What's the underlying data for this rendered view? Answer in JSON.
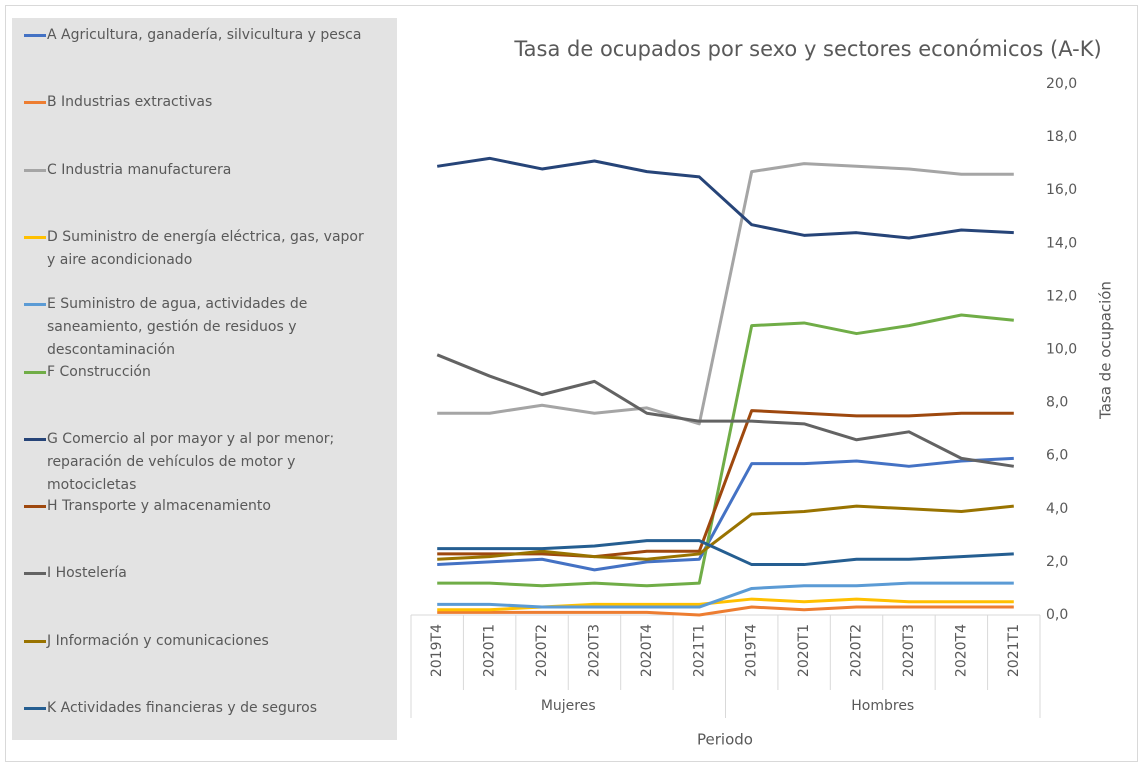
{
  "chart_data": {
    "type": "line",
    "title": "Tasa de ocupados por sexo y sectores económicos (A-K)",
    "x_label": "Periodo",
    "y_label": "Tasa de ocupación",
    "categories": [
      "2019T4",
      "2020T1",
      "2020T2",
      "2020T3",
      "2020T4",
      "2021T1",
      "2019T4",
      "2020T1",
      "2020T2",
      "2020T3",
      "2020T4",
      "2021T1"
    ],
    "groups": [
      "Mujeres",
      "Hombres"
    ],
    "ylim": [
      0,
      20
    ],
    "yticks": [
      {
        "value": 0,
        "label": "0,0"
      },
      {
        "value": 2,
        "label": "2,0"
      },
      {
        "value": 4,
        "label": "4,0"
      },
      {
        "value": 6,
        "label": "6,0"
      },
      {
        "value": 8,
        "label": "8,0"
      },
      {
        "value": 10,
        "label": "10,0"
      },
      {
        "value": 12,
        "label": "12,0"
      },
      {
        "value": 14,
        "label": "14,0"
      },
      {
        "value": 16,
        "label": "16,0"
      },
      {
        "value": 18,
        "label": "18,0"
      },
      {
        "value": 20,
        "label": "20,0"
      }
    ],
    "grid": false,
    "legend": "left",
    "series": [
      {
        "name": "A Agricultura, ganadería, silvicultura y pesca",
        "color": "#4472c4",
        "values": [
          1.9,
          2.0,
          2.1,
          1.7,
          2.0,
          2.1,
          5.7,
          5.7,
          5.8,
          5.6,
          5.8,
          5.9
        ]
      },
      {
        "name": "B Industrias extractivas",
        "color": "#ed7d31",
        "values": [
          0.1,
          0.1,
          0.1,
          0.1,
          0.1,
          0.0,
          0.3,
          0.2,
          0.3,
          0.3,
          0.3,
          0.3
        ]
      },
      {
        "name": "C Industria manufacturera",
        "color": "#a5a5a5",
        "values": [
          7.6,
          7.6,
          7.9,
          7.6,
          7.8,
          7.2,
          16.7,
          17.0,
          16.9,
          16.8,
          16.6,
          16.6
        ]
      },
      {
        "name": "D Suministro de energía eléctrica, gas, vapor y aire acondicionado",
        "color": "#ffc000",
        "values": [
          0.2,
          0.2,
          0.3,
          0.4,
          0.4,
          0.4,
          0.6,
          0.5,
          0.6,
          0.5,
          0.5,
          0.5
        ]
      },
      {
        "name": "E Suministro de agua, actividades de saneamiento, gestión de residuos y descontaminación",
        "color": "#5b9bd5",
        "values": [
          0.4,
          0.4,
          0.3,
          0.3,
          0.3,
          0.3,
          1.0,
          1.1,
          1.1,
          1.2,
          1.2,
          1.2
        ]
      },
      {
        "name": "F Construcción",
        "color": "#70ad47",
        "values": [
          1.2,
          1.2,
          1.1,
          1.2,
          1.1,
          1.2,
          10.9,
          11.0,
          10.6,
          10.9,
          11.3,
          11.1
        ]
      },
      {
        "name": "G Comercio al por mayor y al por menor; reparación de vehículos de motor y motocicletas",
        "color": "#264478",
        "values": [
          16.9,
          17.2,
          16.8,
          17.1,
          16.7,
          16.5,
          14.7,
          14.3,
          14.4,
          14.2,
          14.5,
          14.4
        ]
      },
      {
        "name": "H Transporte y almacenamiento",
        "color": "#9e480e",
        "values": [
          2.3,
          2.3,
          2.3,
          2.2,
          2.4,
          2.4,
          7.7,
          7.6,
          7.5,
          7.5,
          7.6,
          7.6
        ]
      },
      {
        "name": "I Hostelería",
        "color": "#636363",
        "values": [
          9.8,
          9.0,
          8.3,
          8.8,
          7.6,
          7.3,
          7.3,
          7.2,
          6.6,
          6.9,
          5.9,
          5.6
        ]
      },
      {
        "name": "J Información y comunicaciones",
        "color": "#997300",
        "values": [
          2.1,
          2.2,
          2.4,
          2.2,
          2.1,
          2.3,
          3.8,
          3.9,
          4.1,
          4.0,
          3.9,
          4.1
        ]
      },
      {
        "name": "K Actividades financieras y de seguros",
        "color": "#255e91",
        "values": [
          2.5,
          2.5,
          2.5,
          2.6,
          2.8,
          2.8,
          1.9,
          1.9,
          2.1,
          2.1,
          2.2,
          2.3
        ]
      }
    ]
  }
}
